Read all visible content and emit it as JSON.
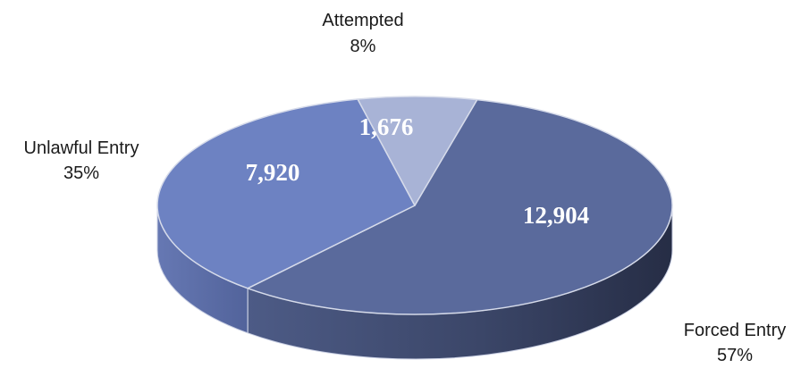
{
  "chart_data": {
    "type": "pie",
    "style": "3d",
    "slices": [
      {
        "label": "Forced Entry",
        "value": 12904,
        "value_label": "12,904",
        "percent_label": "57%",
        "color": "#5a6a9c"
      },
      {
        "label": "Unlawful Entry",
        "value": 7920,
        "value_label": "7,920",
        "percent_label": "35%",
        "color": "#6d82c2"
      },
      {
        "label": "Attempted",
        "value": 1676,
        "value_label": "1,676",
        "percent_label": "8%",
        "color": "#a8b3d6"
      }
    ]
  }
}
